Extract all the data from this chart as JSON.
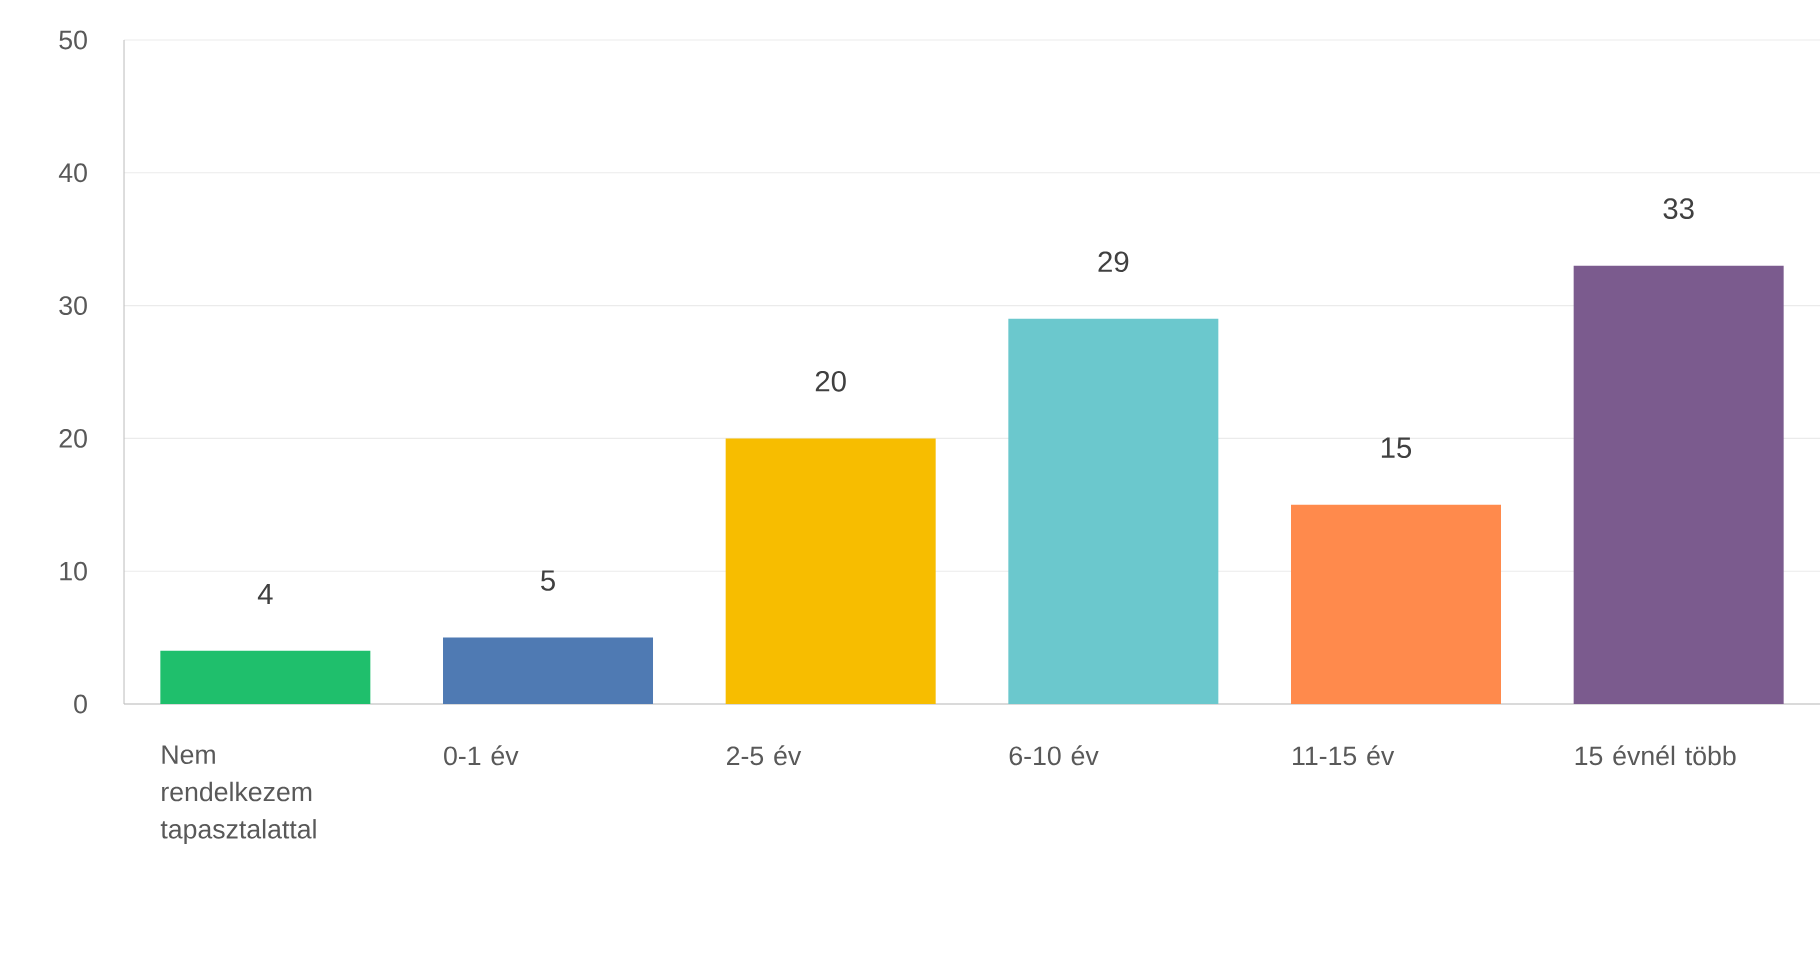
{
  "chart_data": {
    "type": "bar",
    "categories": [
      "Nem rendelkezem tapasztalattal",
      "0-1 év",
      "2-5 év",
      "6-10 év",
      "11-15 év",
      "15 évnél több"
    ],
    "values": [
      4,
      5,
      20,
      29,
      15,
      33
    ],
    "colors": [
      "#1fbf6c",
      "#4f7ab3",
      "#f7bd00",
      "#6bc8cd",
      "#ff8a4c",
      "#7b5b8e"
    ],
    "ylim": [
      0,
      50
    ],
    "yticks": [
      0,
      10,
      20,
      30,
      40,
      50
    ],
    "grid": "y",
    "data_labels": true
  }
}
